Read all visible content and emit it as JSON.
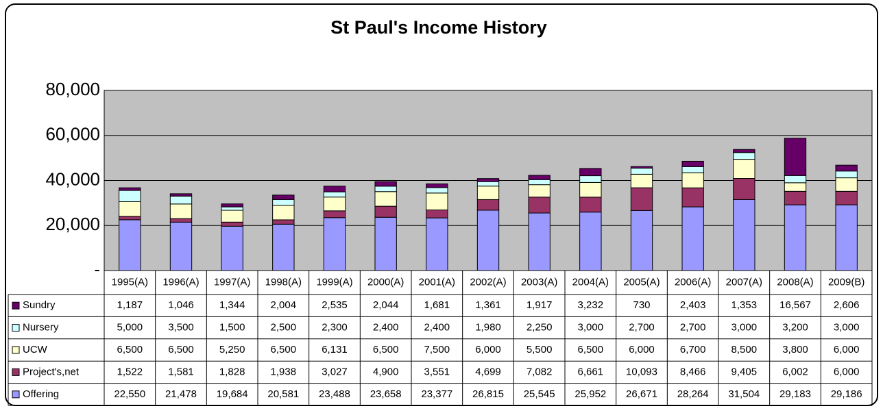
{
  "chart_data": {
    "type": "bar",
    "stacked": true,
    "title": "St Paul's Income History",
    "categories": [
      "1995(A)",
      "1996(A)",
      "1997(A)",
      "1998(A)",
      "1999(A)",
      "2000(A)",
      "2001(A)",
      "2002(A)",
      "2003(A)",
      "2004(A)",
      "2005(A)",
      "2006(A)",
      "2007(A)",
      "2008(A)",
      "2009(B)"
    ],
    "series": [
      {
        "name": "Offering",
        "color": "#9999ff",
        "values": [
          22550,
          21478,
          19684,
          20581,
          23488,
          23658,
          23377,
          26815,
          25545,
          25952,
          26671,
          28264,
          31504,
          29183,
          29186
        ],
        "value_labels": [
          "22,550",
          "21,478",
          "19,684",
          "20,581",
          "23,488",
          "23,658",
          "23,377",
          "26,815",
          "25,545",
          "25,952",
          "26,671",
          "28,264",
          "31,504",
          "29,183",
          "29,186"
        ]
      },
      {
        "name": "Project's,net",
        "color": "#993366",
        "values": [
          1522,
          1581,
          1828,
          1938,
          3027,
          4900,
          3551,
          4699,
          7082,
          6661,
          10093,
          8466,
          9405,
          6002,
          6000
        ],
        "value_labels": [
          "1,522",
          "1,581",
          "1,828",
          "1,938",
          "3,027",
          "4,900",
          "3,551",
          "4,699",
          "7,082",
          "6,661",
          "10,093",
          "8,466",
          "9,405",
          "6,002",
          "6,000"
        ]
      },
      {
        "name": "UCW",
        "color": "#ffffcc",
        "values": [
          6500,
          6500,
          5250,
          6500,
          6131,
          6500,
          7500,
          6000,
          5500,
          6500,
          6000,
          6700,
          8500,
          3800,
          6000
        ],
        "value_labels": [
          "6,500",
          "6,500",
          "5,250",
          "6,500",
          "6,131",
          "6,500",
          "7,500",
          "6,000",
          "5,500",
          "6,500",
          "6,000",
          "6,700",
          "8,500",
          "3,800",
          "6,000"
        ]
      },
      {
        "name": "Nursery",
        "color": "#ccffff",
        "values": [
          5000,
          3500,
          1500,
          2500,
          2300,
          2400,
          2400,
          1980,
          2250,
          3000,
          2700,
          2700,
          3000,
          3200,
          3000
        ],
        "value_labels": [
          "5,000",
          "3,500",
          "1,500",
          "2,500",
          "2,300",
          "2,400",
          "2,400",
          "1,980",
          "2,250",
          "3,000",
          "2,700",
          "2,700",
          "3,000",
          "3,200",
          "3,000"
        ]
      },
      {
        "name": "Sundry",
        "color": "#660066",
        "values": [
          1187,
          1046,
          1344,
          2004,
          2535,
          2044,
          1681,
          1361,
          1917,
          3232,
          730,
          2403,
          1353,
          16567,
          2606
        ],
        "value_labels": [
          "1,187",
          "1,046",
          "1,344",
          "2,004",
          "2,535",
          "2,044",
          "1,681",
          "1,361",
          "1,917",
          "3,232",
          "730",
          "2,403",
          "1,353",
          "16,567",
          "2,606"
        ]
      }
    ],
    "ylim": [
      0,
      80000
    ],
    "yticks": [
      {
        "value": 0,
        "label": "-"
      },
      {
        "value": 20000,
        "label": "20,000"
      },
      {
        "value": 40000,
        "label": "40,000"
      },
      {
        "value": 60000,
        "label": "60,000"
      },
      {
        "value": 80000,
        "label": "80,000"
      }
    ],
    "grid": true,
    "plot_background": "#c0c0c0"
  }
}
